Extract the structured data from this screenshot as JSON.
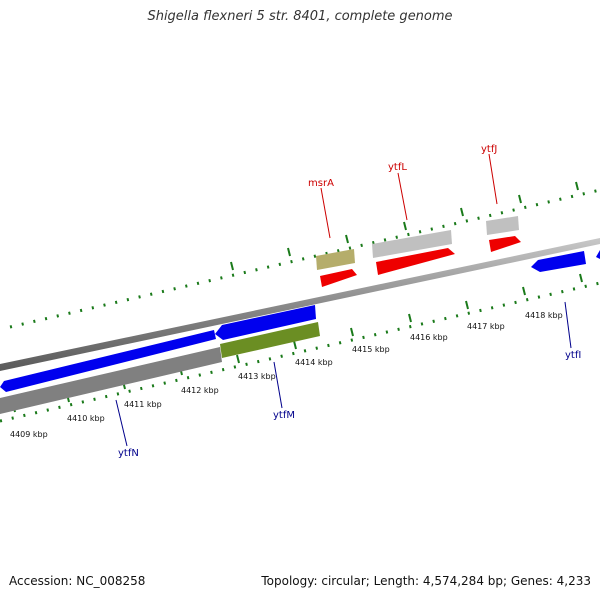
{
  "title": "Shigella flexneri 5 str. 8401, complete genome",
  "footer": {
    "accession": "Accession: NC_008258",
    "topology": "Topology: circular; Length: 4,574,284 bp; Genes: 4,233"
  },
  "colors": {
    "forward_cds": "#0000ee",
    "reverse_cds": "#ee0000",
    "backbone": "#808080",
    "gene_label_forward": "#00008b",
    "gene_label_reverse": "#cc0000",
    "tick_marks": "#1a7a1a",
    "msrA_box": "#b5ad6b",
    "ytfM_box": "#6b8e23",
    "grey_box": "#c0c0c0"
  },
  "scale": {
    "ticks": [
      {
        "label": "4409 kbp"
      },
      {
        "label": "4410 kbp"
      },
      {
        "label": "4411 kbp"
      },
      {
        "label": "4412 kbp"
      },
      {
        "label": "4413 kbp"
      },
      {
        "label": "4414 kbp"
      },
      {
        "label": "4415 kbp"
      },
      {
        "label": "4416 kbp"
      },
      {
        "label": "4417 kbp"
      },
      {
        "label": "4418 kbp"
      }
    ]
  },
  "genes": [
    {
      "name": "msrA",
      "strand": "reverse"
    },
    {
      "name": "ytfL",
      "strand": "reverse"
    },
    {
      "name": "ytfJ",
      "strand": "reverse"
    },
    {
      "name": "ytfN",
      "strand": "forward"
    },
    {
      "name": "ytfM",
      "strand": "forward"
    },
    {
      "name": "ytfI",
      "strand": "forward"
    }
  ]
}
